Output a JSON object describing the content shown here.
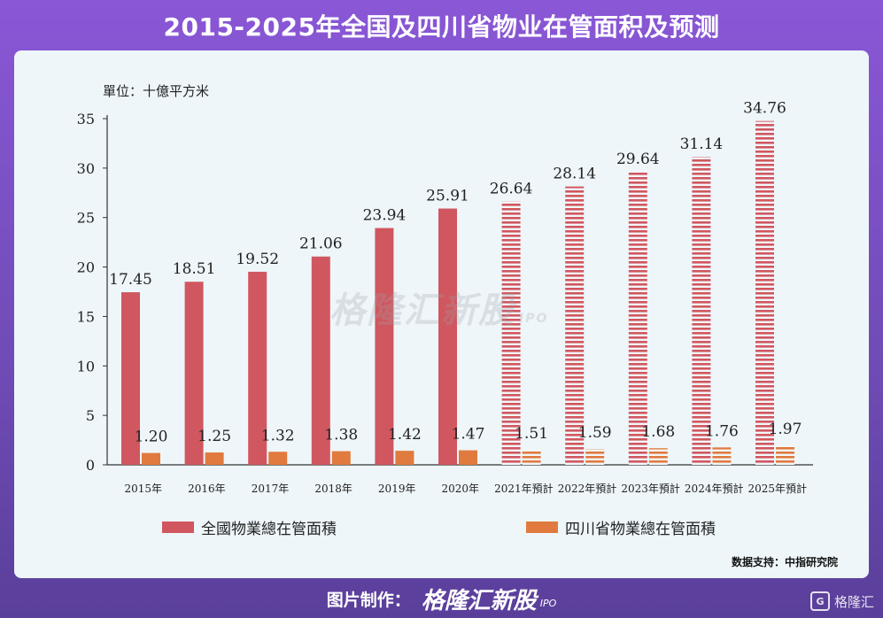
{
  "header": {
    "title": "2015-2025年全国及四川省物业在管面积及预测"
  },
  "unit_label": "單位：十億平方米",
  "source": "数据支持：中指研究院",
  "watermark": {
    "text": "格隆汇新股",
    "suffix": "IPO"
  },
  "footer": {
    "label": "图片制作：",
    "brand": "格隆汇新股",
    "ipo": "IPO",
    "corner_logo": "格隆汇",
    "corner_icon": "G"
  },
  "colors": {
    "national": "#d0575f",
    "sichuan": "#e07a3e",
    "axis": "#333333"
  },
  "chart_data": {
    "type": "bar",
    "title": "",
    "xlabel": "",
    "ylabel": "",
    "ylim": [
      0,
      35
    ],
    "yticks": [
      0,
      5,
      10,
      15,
      20,
      25,
      30,
      35
    ],
    "categories": [
      "2015年",
      "2016年",
      "2017年",
      "2018年",
      "2019年",
      "2020年",
      "2021年預計",
      "2022年預計",
      "2023年預計",
      "2024年預計",
      "2025年預計"
    ],
    "forecast_from_index": 6,
    "series": [
      {
        "name": "全國物業總在管面積",
        "values": [
          17.45,
          18.51,
          19.52,
          21.06,
          23.94,
          25.91,
          26.64,
          28.14,
          29.64,
          31.14,
          34.76
        ],
        "labels": [
          "17.45",
          "18.51",
          "19.52",
          "21.06",
          "23.94",
          "25.91",
          "26.64",
          "28.14",
          "29.64",
          "31.14",
          "34.76"
        ]
      },
      {
        "name": "四川省物業總在管面積",
        "values": [
          1.2,
          1.25,
          1.32,
          1.38,
          1.42,
          1.47,
          1.51,
          1.59,
          1.68,
          1.76,
          1.97
        ],
        "labels": [
          "1.20",
          "1.25",
          "1.32",
          "1.38",
          "1.42",
          "1.47",
          "1.51",
          "1.59",
          "1.68",
          "1.76",
          "1.97"
        ]
      }
    ],
    "legend_position": "bottom",
    "grid": false
  }
}
